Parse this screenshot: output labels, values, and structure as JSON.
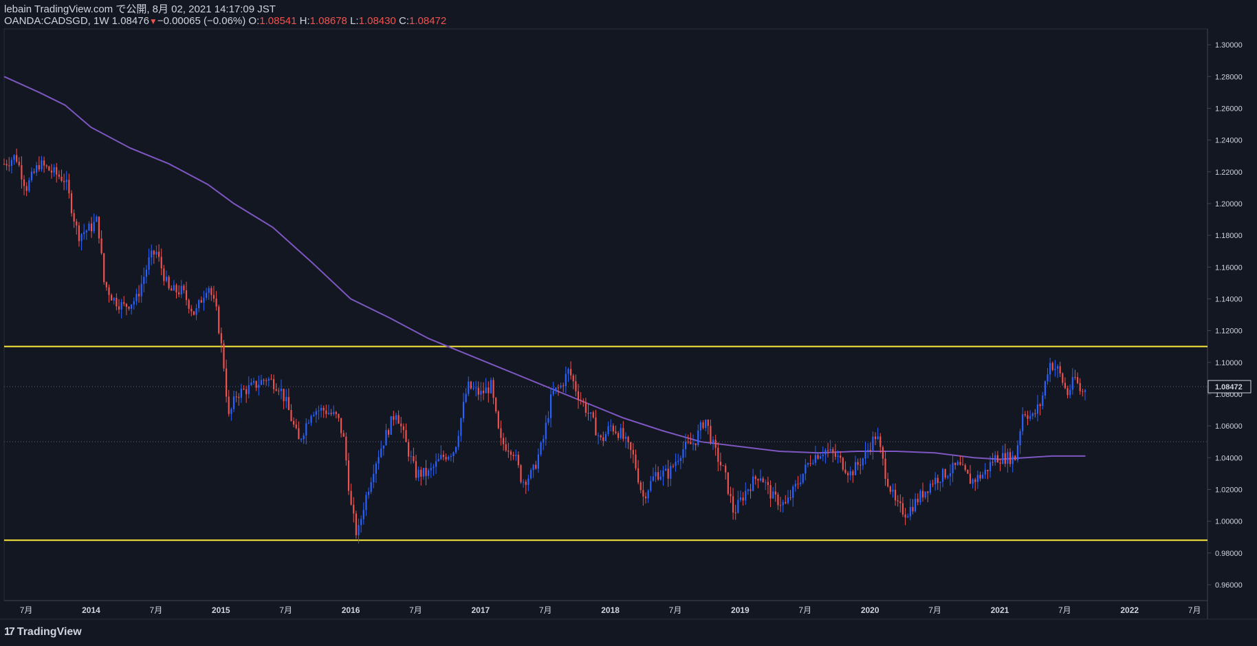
{
  "header": {
    "publisher": "lebain TradingView.com で公開, 8月 02, 2021 14:17:09 JST",
    "symbol": "OANDA:CADSGD, 1W 1.08476",
    "change": "−0.00065 (−0.06%)",
    "o_label": "O:",
    "o_value": "1.08541",
    "h_label": "H:",
    "h_value": "1.08678",
    "l_label": "L:",
    "l_value": "1.08430",
    "c_label": "C:",
    "c_value": "1.08472"
  },
  "footer": {
    "brand": "TradingView"
  },
  "icons": {
    "down_triangle": "down-arrow-icon",
    "logo": "tradingview-logo-icon"
  },
  "colors": {
    "background": "#131722",
    "up": "#2962ff",
    "down": "#ef5350",
    "ma": "#7e57c2",
    "level": "#ffeb3b",
    "text": "#d1d4dc"
  },
  "chart_data": {
    "type": "candlestick",
    "timeframe": "1W",
    "ylim": [
      0.95,
      1.31
    ],
    "y_ticks": [
      "1.30000",
      "1.28000",
      "1.26000",
      "1.24000",
      "1.22000",
      "1.20000",
      "1.18000",
      "1.16000",
      "1.14000",
      "1.12000",
      "1.10000",
      "1.08000",
      "1.06000",
      "1.04000",
      "1.02000",
      "1.00000",
      "0.98000",
      "0.96000"
    ],
    "y_tick_values": [
      1.3,
      1.28,
      1.26,
      1.24,
      1.22,
      1.2,
      1.18,
      1.16,
      1.14,
      1.12,
      1.1,
      1.08,
      1.06,
      1.04,
      1.02,
      1.0,
      0.98,
      0.96
    ],
    "x_ticks": [
      "7月",
      "2014",
      "7月",
      "2015",
      "7月",
      "2016",
      "7月",
      "2017",
      "7月",
      "2018",
      "7月",
      "2019",
      "7月",
      "2020",
      "7月",
      "2021",
      "7月",
      "2022",
      "7月"
    ],
    "x_tick_years": [
      2013.5,
      2014,
      2014.5,
      2015,
      2015.5,
      2016,
      2016.5,
      2017,
      2017.5,
      2018,
      2018.5,
      2019,
      2019.5,
      2020,
      2020.5,
      2021,
      2021.5,
      2022,
      2022.5
    ],
    "x_range": [
      2013.33,
      2022.6
    ],
    "last_price": "1.08472",
    "last_price_value": 1.08472,
    "horizontal_levels": [
      1.11,
      0.988
    ],
    "dotted_level": 1.05,
    "price_path": [
      [
        2013.33,
        1.225
      ],
      [
        2013.42,
        1.23
      ],
      [
        2013.5,
        1.21
      ],
      [
        2013.6,
        1.225
      ],
      [
        2013.7,
        1.22
      ],
      [
        2013.8,
        1.215
      ],
      [
        2013.9,
        1.18
      ],
      [
        2014.0,
        1.185
      ],
      [
        2014.05,
        1.19
      ],
      [
        2014.1,
        1.15
      ],
      [
        2014.17,
        1.14
      ],
      [
        2014.25,
        1.135
      ],
      [
        2014.35,
        1.14
      ],
      [
        2014.45,
        1.165
      ],
      [
        2014.5,
        1.17
      ],
      [
        2014.6,
        1.145
      ],
      [
        2014.7,
        1.145
      ],
      [
        2014.8,
        1.13
      ],
      [
        2014.9,
        1.15
      ],
      [
        2014.97,
        1.13
      ],
      [
        2015.02,
        1.1
      ],
      [
        2015.06,
        1.065
      ],
      [
        2015.12,
        1.08
      ],
      [
        2015.25,
        1.085
      ],
      [
        2015.35,
        1.09
      ],
      [
        2015.45,
        1.085
      ],
      [
        2015.5,
        1.075
      ],
      [
        2015.6,
        1.05
      ],
      [
        2015.7,
        1.07
      ],
      [
        2015.8,
        1.07
      ],
      [
        2015.9,
        1.065
      ],
      [
        2015.95,
        1.05
      ],
      [
        2016.0,
        1.01
      ],
      [
        2016.05,
        0.99
      ],
      [
        2016.1,
        1.01
      ],
      [
        2016.18,
        1.035
      ],
      [
        2016.25,
        1.05
      ],
      [
        2016.35,
        1.07
      ],
      [
        2016.42,
        1.05
      ],
      [
        2016.5,
        1.03
      ],
      [
        2016.6,
        1.03
      ],
      [
        2016.7,
        1.04
      ],
      [
        2016.8,
        1.045
      ],
      [
        2016.9,
        1.085
      ],
      [
        2017.0,
        1.08
      ],
      [
        2017.08,
        1.085
      ],
      [
        2017.15,
        1.05
      ],
      [
        2017.25,
        1.045
      ],
      [
        2017.32,
        1.025
      ],
      [
        2017.4,
        1.03
      ],
      [
        2017.48,
        1.05
      ],
      [
        2017.55,
        1.08
      ],
      [
        2017.62,
        1.085
      ],
      [
        2017.68,
        1.095
      ],
      [
        2017.75,
        1.08
      ],
      [
        2017.85,
        1.065
      ],
      [
        2017.93,
        1.05
      ],
      [
        2018.0,
        1.06
      ],
      [
        2018.08,
        1.055
      ],
      [
        2018.18,
        1.04
      ],
      [
        2018.25,
        1.015
      ],
      [
        2018.35,
        1.03
      ],
      [
        2018.45,
        1.03
      ],
      [
        2018.55,
        1.045
      ],
      [
        2018.65,
        1.05
      ],
      [
        2018.73,
        1.065
      ],
      [
        2018.8,
        1.045
      ],
      [
        2018.88,
        1.03
      ],
      [
        2018.95,
        1.005
      ],
      [
        2019.05,
        1.02
      ],
      [
        2019.15,
        1.03
      ],
      [
        2019.25,
        1.015
      ],
      [
        2019.35,
        1.01
      ],
      [
        2019.45,
        1.025
      ],
      [
        2019.55,
        1.04
      ],
      [
        2019.65,
        1.045
      ],
      [
        2019.75,
        1.04
      ],
      [
        2019.85,
        1.03
      ],
      [
        2019.95,
        1.04
      ],
      [
        2020.05,
        1.055
      ],
      [
        2020.12,
        1.03
      ],
      [
        2020.2,
        1.01
      ],
      [
        2020.28,
        1.005
      ],
      [
        2020.38,
        1.015
      ],
      [
        2020.48,
        1.025
      ],
      [
        2020.58,
        1.03
      ],
      [
        2020.68,
        1.035
      ],
      [
        2020.78,
        1.025
      ],
      [
        2020.88,
        1.03
      ],
      [
        2020.96,
        1.04
      ],
      [
        2021.05,
        1.04
      ],
      [
        2021.12,
        1.04
      ],
      [
        2021.18,
        1.07
      ],
      [
        2021.25,
        1.065
      ],
      [
        2021.32,
        1.075
      ],
      [
        2021.38,
        1.1
      ],
      [
        2021.45,
        1.095
      ],
      [
        2021.52,
        1.08
      ],
      [
        2021.58,
        1.09
      ],
      [
        2021.63,
        1.08
      ],
      [
        2021.66,
        1.0847
      ]
    ],
    "ma_series": [
      [
        2013.33,
        1.28
      ],
      [
        2013.6,
        1.27
      ],
      [
        2013.8,
        1.262
      ],
      [
        2014.0,
        1.248
      ],
      [
        2014.3,
        1.235
      ],
      [
        2014.6,
        1.225
      ],
      [
        2014.9,
        1.212
      ],
      [
        2015.1,
        1.2
      ],
      [
        2015.4,
        1.185
      ],
      [
        2015.7,
        1.163
      ],
      [
        2016.0,
        1.14
      ],
      [
        2016.3,
        1.128
      ],
      [
        2016.6,
        1.115
      ],
      [
        2016.9,
        1.105
      ],
      [
        2017.2,
        1.095
      ],
      [
        2017.5,
        1.085
      ],
      [
        2017.8,
        1.075
      ],
      [
        2018.1,
        1.065
      ],
      [
        2018.4,
        1.057
      ],
      [
        2018.7,
        1.05
      ],
      [
        2019.0,
        1.047
      ],
      [
        2019.3,
        1.044
      ],
      [
        2019.6,
        1.043
      ],
      [
        2019.9,
        1.044
      ],
      [
        2020.2,
        1.044
      ],
      [
        2020.5,
        1.043
      ],
      [
        2020.8,
        1.04
      ],
      [
        2021.0,
        1.039
      ],
      [
        2021.2,
        1.04
      ],
      [
        2021.4,
        1.041
      ],
      [
        2021.66,
        1.041
      ]
    ]
  }
}
